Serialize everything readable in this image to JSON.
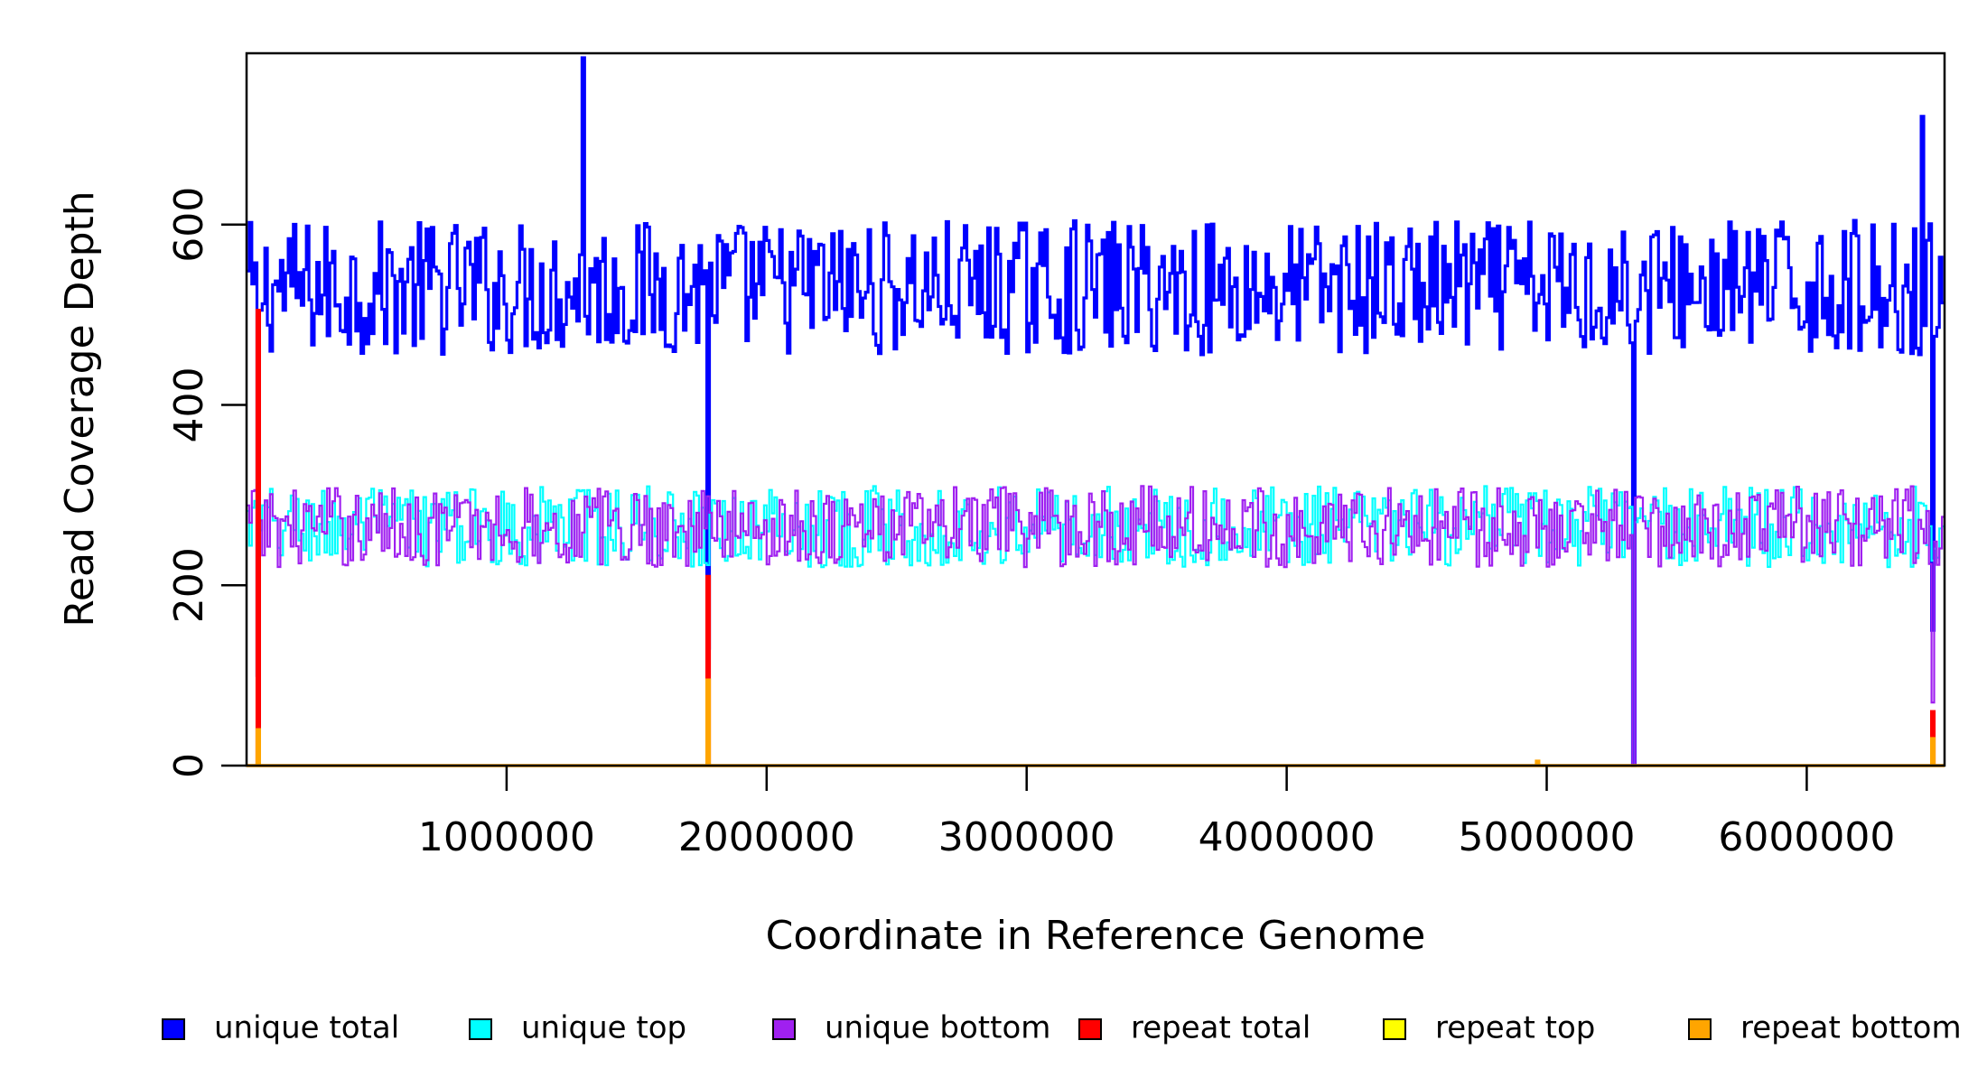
{
  "chart_data": {
    "type": "line",
    "title": "",
    "xlabel": "Coordinate in Reference Genome",
    "ylabel": "Read Coverage Depth",
    "xlim": [
      0,
      6530000
    ],
    "ylim": [
      0,
      790
    ],
    "xticks": [
      1000000,
      2000000,
      3000000,
      4000000,
      5000000,
      6000000
    ],
    "xtick_labels": [
      "1000000",
      "2000000",
      "3000000",
      "4000000",
      "5000000",
      "6000000"
    ],
    "yticks": [
      0,
      200,
      400,
      600
    ],
    "ytick_labels": [
      "0",
      "200",
      "400",
      "600"
    ],
    "grid": false,
    "legend_position": "bottom",
    "bin_width": 10000,
    "series": [
      {
        "name": "unique total",
        "color": "#0000ff",
        "base": 530,
        "amplitude": 75,
        "dips": [
          {
            "x": 40000,
            "value": 100
          },
          {
            "x": 1775000,
            "value": 130
          },
          {
            "x": 5335000,
            "value": 0
          },
          {
            "x": 6480000,
            "value": 150
          }
        ],
        "peaks": [
          {
            "x": 1295000,
            "value": 785
          },
          {
            "x": 6440000,
            "value": 720
          }
        ]
      },
      {
        "name": "unique top",
        "color": "#00ffff",
        "base": 265,
        "amplitude": 45,
        "dips": [
          {
            "x": 5335000,
            "value": 0
          }
        ],
        "peaks": []
      },
      {
        "name": "unique bottom",
        "color": "#a020f0",
        "base": 265,
        "amplitude": 45,
        "dips": [
          {
            "x": 5335000,
            "value": 0
          },
          {
            "x": 6480000,
            "value": 70
          }
        ],
        "peaks": []
      },
      {
        "name": "repeat total",
        "color": "#ff0000",
        "base": 0,
        "amplitude": 0,
        "dips": [],
        "peaks": [
          {
            "x": 40000,
            "value": 505
          },
          {
            "x": 1775000,
            "value": 210
          },
          {
            "x": 6480000,
            "value": 60
          }
        ]
      },
      {
        "name": "repeat top",
        "color": "#ffff00",
        "base": 0,
        "amplitude": 0,
        "dips": [],
        "peaks": []
      },
      {
        "name": "repeat bottom",
        "color": "#ffa500",
        "base": 0,
        "amplitude": 0,
        "dips": [],
        "peaks": [
          {
            "x": 40000,
            "value": 40
          },
          {
            "x": 1775000,
            "value": 95
          },
          {
            "x": 4960000,
            "value": 5
          },
          {
            "x": 6480000,
            "value": 30
          }
        ]
      }
    ]
  }
}
